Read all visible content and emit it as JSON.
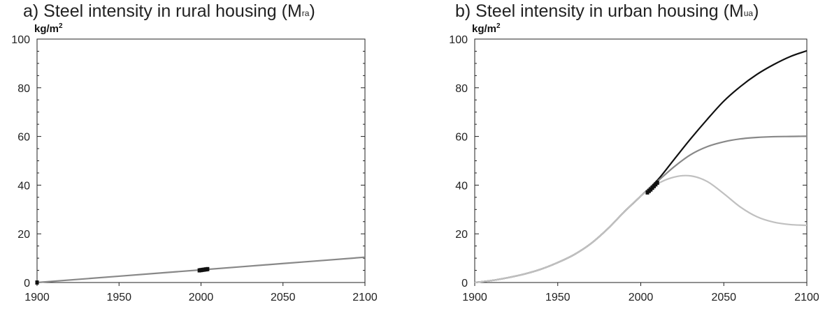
{
  "chart_data": [
    {
      "type": "line",
      "title": "a) Steel intensity in rural housing (M",
      "title_sub": "ra",
      "title_close": ")",
      "ylabel_unit": "kg/m",
      "ylabel_sup": "2",
      "xlim": [
        1900,
        2100
      ],
      "ylim": [
        0,
        100
      ],
      "x_ticks": [
        1900,
        1950,
        2000,
        2050,
        2100
      ],
      "y_ticks": [
        0,
        20,
        40,
        60,
        80,
        100
      ],
      "colors": {
        "line": "#888888",
        "marker": "#111111"
      },
      "series": [
        {
          "x": [
            1900,
            1950,
            2000,
            2050,
            2100
          ],
          "values": [
            0,
            2.6,
            5.2,
            7.8,
            10.4
          ]
        }
      ],
      "observations": [
        {
          "x": [
            1900,
            1999,
            2000,
            2001,
            2002,
            2003,
            2004
          ],
          "values": [
            0,
            5.0,
            5.1,
            5.2,
            5.3,
            5.4,
            5.5
          ]
        }
      ]
    },
    {
      "type": "line",
      "title": "b) Steel intensity in urban housing (M",
      "title_sub": "ua",
      "title_close": ")",
      "ylabel_unit": "kg/m",
      "ylabel_sup": "2",
      "xlim": [
        1900,
        2100
      ],
      "ylim": [
        0,
        100
      ],
      "x_ticks": [
        1900,
        1950,
        2000,
        2050,
        2100
      ],
      "y_ticks": [
        0,
        20,
        40,
        60,
        80,
        100
      ],
      "colors": {
        "high": "#111111",
        "mid": "#888888",
        "low": "#c0c0c0",
        "marker": "#111111"
      },
      "series": [
        {
          "color_key": "high",
          "x": [
            1900,
            1910,
            1920,
            1930,
            1940,
            1950,
            1960,
            1970,
            1980,
            1990,
            2000,
            2010,
            2020,
            2030,
            2040,
            2050,
            2060,
            2070,
            2080,
            2090,
            2100
          ],
          "values": [
            0,
            0.8,
            2.0,
            3.5,
            5.5,
            8.2,
            11.5,
            16.0,
            22.0,
            29.0,
            35.5,
            42.0,
            50.5,
            59.0,
            67.0,
            74.5,
            80.5,
            85.5,
            89.5,
            92.8,
            95.2
          ]
        },
        {
          "color_key": "mid",
          "x": [
            1900,
            1910,
            1920,
            1930,
            1940,
            1950,
            1960,
            1970,
            1980,
            1990,
            2000,
            2010,
            2020,
            2030,
            2040,
            2050,
            2060,
            2070,
            2080,
            2090,
            2100
          ],
          "values": [
            0,
            0.8,
            2.0,
            3.5,
            5.5,
            8.2,
            11.5,
            16.0,
            22.0,
            29.0,
            35.5,
            41.5,
            47.5,
            52.5,
            55.8,
            57.8,
            59.0,
            59.6,
            59.9,
            60.0,
            60.1
          ]
        },
        {
          "color_key": "low",
          "x": [
            1900,
            1910,
            1920,
            1930,
            1940,
            1950,
            1960,
            1970,
            1980,
            1990,
            2000,
            2010,
            2020,
            2030,
            2040,
            2050,
            2060,
            2070,
            2080,
            2090,
            2100
          ],
          "values": [
            0,
            0.8,
            2.0,
            3.5,
            5.5,
            8.2,
            11.5,
            16.0,
            22.0,
            29.0,
            35.5,
            40.5,
            43.3,
            43.8,
            41.5,
            36.5,
            31.0,
            27.0,
            24.8,
            23.8,
            23.5
          ]
        }
      ],
      "observations": [
        {
          "x": [
            2004,
            2005,
            2006,
            2007,
            2008,
            2009,
            2010
          ],
          "values": [
            37.0,
            37.6,
            38.2,
            38.9,
            39.6,
            40.3,
            41.0
          ]
        }
      ]
    }
  ]
}
